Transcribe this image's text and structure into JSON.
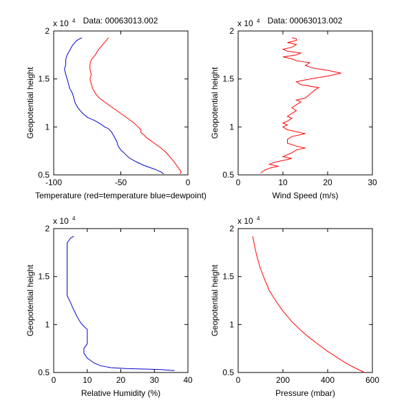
{
  "figure": {
    "background": "#ffffff"
  },
  "chart_data": [
    {
      "type": "line",
      "title": "Data: 00063013.002",
      "xlabel": "Temperature (red=temperature blue=dewpoint)",
      "ylabel": "Geopotential height",
      "xlim": [
        -100,
        0
      ],
      "ylim": [
        5000,
        20000
      ],
      "xticks": [
        -100,
        -50,
        0
      ],
      "xtick_labels": [
        "-100",
        "-50",
        "0"
      ],
      "yticks": [
        5000,
        10000,
        15000,
        20000
      ],
      "ytick_labels": [
        "0.5",
        "1",
        "1.5",
        "2"
      ],
      "y_multiplier": {
        "base": "x 10",
        "exponent": "4"
      },
      "grid": false,
      "series": [
        {
          "color": "#ff0000",
          "points": [
            [
              -6,
              5100
            ],
            [
              -5,
              5300
            ],
            [
              -7,
              5700
            ],
            [
              -10,
              6300
            ],
            [
              -13,
              6800
            ],
            [
              -16,
              7300
            ],
            [
              -20,
              7800
            ],
            [
              -25,
              8300
            ],
            [
              -28,
              8600
            ],
            [
              -31,
              8900
            ],
            [
              -33,
              9200
            ],
            [
              -35,
              9400
            ],
            [
              -35,
              9700
            ],
            [
              -37,
              10000
            ],
            [
              -41,
              10500
            ],
            [
              -46,
              11000
            ],
            [
              -51,
              11500
            ],
            [
              -56,
              12000
            ],
            [
              -61,
              12500
            ],
            [
              -66,
              13000
            ],
            [
              -69,
              13500
            ],
            [
              -71,
              14000
            ],
            [
              -72,
              14500
            ],
            [
              -73,
              15000
            ],
            [
              -72,
              15500
            ],
            [
              -73,
              16000
            ],
            [
              -73,
              16500
            ],
            [
              -72,
              17000
            ],
            [
              -69,
              17500
            ],
            [
              -67,
              18000
            ],
            [
              -64,
              18500
            ],
            [
              -61,
              19000
            ],
            [
              -59,
              19300
            ]
          ]
        },
        {
          "color": "#0000cc",
          "points": [
            [
              -18,
              5100
            ],
            [
              -20,
              5300
            ],
            [
              -25,
              5600
            ],
            [
              -33,
              6000
            ],
            [
              -39,
              6400
            ],
            [
              -44,
              6800
            ],
            [
              -47,
              7200
            ],
            [
              -50,
              7600
            ],
            [
              -52,
              8000
            ],
            [
              -53,
              8500
            ],
            [
              -55,
              9000
            ],
            [
              -57,
              9500
            ],
            [
              -59,
              9800
            ],
            [
              -62,
              10000
            ],
            [
              -65,
              10300
            ],
            [
              -70,
              10700
            ],
            [
              -75,
              11000
            ],
            [
              -79,
              11500
            ],
            [
              -82,
              12000
            ],
            [
              -84,
              12500
            ],
            [
              -85,
              13000
            ],
            [
              -86,
              13500
            ],
            [
              -88,
              14000
            ],
            [
              -89,
              14500
            ],
            [
              -90,
              15000
            ],
            [
              -91,
              15500
            ],
            [
              -92,
              16000
            ],
            [
              -91,
              16500
            ],
            [
              -91,
              17000
            ],
            [
              -90,
              17500
            ],
            [
              -88,
              18000
            ],
            [
              -86,
              18500
            ],
            [
              -83,
              19000
            ],
            [
              -79,
              19300
            ]
          ]
        }
      ]
    },
    {
      "type": "line",
      "title": "Data: 00063013.002",
      "xlabel": "Wind Speed (m/s)",
      "ylabel": "Geopotential height",
      "xlim": [
        0,
        30
      ],
      "ylim": [
        5000,
        20000
      ],
      "xticks": [
        0,
        10,
        20,
        30
      ],
      "xtick_labels": [
        "0",
        "10",
        "20",
        "30"
      ],
      "yticks": [
        5000,
        10000,
        15000,
        20000
      ],
      "ytick_labels": [
        "0.5",
        "1",
        "1.5",
        "2"
      ],
      "y_multiplier": {
        "base": "x 10",
        "exponent": "4"
      },
      "grid": false,
      "series": [
        {
          "color": "#ff0000",
          "points": [
            [
              5,
              5200
            ],
            [
              6,
              5500
            ],
            [
              7,
              5700
            ],
            [
              9,
              5900
            ],
            [
              7,
              6100
            ],
            [
              8,
              6300
            ],
            [
              10,
              6500
            ],
            [
              12,
              6700
            ],
            [
              10,
              6900
            ],
            [
              11,
              7100
            ],
            [
              12,
              7300
            ],
            [
              13,
              7600
            ],
            [
              15,
              7800
            ],
            [
              13,
              8000
            ],
            [
              11,
              8300
            ],
            [
              11,
              8700
            ],
            [
              12,
              9000
            ],
            [
              15,
              9300
            ],
            [
              13,
              9500
            ],
            [
              11,
              9700
            ],
            [
              10,
              10000
            ],
            [
              11,
              10200
            ],
            [
              10,
              10400
            ],
            [
              11,
              10600
            ],
            [
              12,
              10900
            ],
            [
              11,
              11100
            ],
            [
              12,
              11400
            ],
            [
              13,
              11700
            ],
            [
              12,
              12000
            ],
            [
              13,
              12300
            ],
            [
              14,
              12600
            ],
            [
              13,
              12800
            ],
            [
              15,
              13000
            ],
            [
              16,
              13400
            ],
            [
              17,
              13800
            ],
            [
              18,
              14100
            ],
            [
              14,
              14400
            ],
            [
              13,
              14700
            ],
            [
              16,
              15000
            ],
            [
              20,
              15300
            ],
            [
              23,
              15600
            ],
            [
              20,
              15900
            ],
            [
              17,
              16100
            ],
            [
              15,
              16400
            ],
            [
              16,
              16700
            ],
            [
              13,
              16900
            ],
            [
              12,
              17100
            ],
            [
              10,
              17300
            ],
            [
              13,
              17500
            ],
            [
              14,
              17700
            ],
            [
              11,
              17900
            ],
            [
              10,
              18100
            ],
            [
              12,
              18300
            ],
            [
              13,
              18600
            ],
            [
              11,
              18800
            ],
            [
              13,
              19000
            ],
            [
              13,
              19200
            ],
            [
              12,
              19300
            ]
          ]
        }
      ]
    },
    {
      "type": "line",
      "title": "",
      "xlabel": "Relative Humidity (%)",
      "ylabel": "Geopotential height",
      "xlim": [
        0,
        40
      ],
      "ylim": [
        5000,
        20000
      ],
      "xticks": [
        0,
        10,
        20,
        30,
        40
      ],
      "xtick_labels": [
        "0",
        "10",
        "20",
        "30",
        "40"
      ],
      "yticks": [
        5000,
        10000,
        15000,
        20000
      ],
      "ytick_labels": [
        "0.5",
        "1",
        "1.5",
        "2"
      ],
      "y_multiplier": {
        "base": "x 10",
        "exponent": "4"
      },
      "grid": false,
      "series": [
        {
          "color": "#0000cc",
          "points": [
            [
              36,
              5200
            ],
            [
              32,
              5300
            ],
            [
              28,
              5350
            ],
            [
              22,
              5400
            ],
            [
              17,
              5500
            ],
            [
              14,
              5700
            ],
            [
              12,
              6000
            ],
            [
              10,
              6500
            ],
            [
              9,
              7000
            ],
            [
              9,
              7500
            ],
            [
              10,
              8000
            ],
            [
              10,
              8500
            ],
            [
              10,
              9000
            ],
            [
              10,
              9500
            ],
            [
              9,
              9800
            ],
            [
              8,
              10200
            ],
            [
              7,
              10800
            ],
            [
              6,
              11500
            ],
            [
              5,
              12300
            ],
            [
              4,
              13000
            ],
            [
              4,
              14000
            ],
            [
              4,
              15000
            ],
            [
              4,
              16000
            ],
            [
              4,
              17000
            ],
            [
              4,
              18000
            ],
            [
              4,
              18500
            ],
            [
              5,
              19000
            ],
            [
              6,
              19200
            ]
          ]
        }
      ]
    },
    {
      "type": "line",
      "title": "",
      "xlabel": "Pressure (mbar)",
      "ylabel": "Geopotential height",
      "xlim": [
        0,
        600
      ],
      "ylim": [
        5000,
        20000
      ],
      "xticks": [
        0,
        200,
        400,
        600
      ],
      "xtick_labels": [
        "0",
        "200",
        "400",
        "600"
      ],
      "yticks": [
        5000,
        10000,
        15000,
        20000
      ],
      "ytick_labels": [
        "0.5",
        "1",
        "1.5",
        "2"
      ],
      "y_multiplier": {
        "base": "x 10",
        "exponent": "4"
      },
      "grid": false,
      "series": [
        {
          "color": "#ff0000",
          "points": [
            [
              565,
              5000
            ],
            [
              520,
              5500
            ],
            [
              480,
              6000
            ],
            [
              440,
              6600
            ],
            [
              400,
              7200
            ],
            [
              360,
              7900
            ],
            [
              320,
              8600
            ],
            [
              280,
              9400
            ],
            [
              240,
              10300
            ],
            [
              200,
              11400
            ],
            [
              170,
              12400
            ],
            [
              140,
              13500
            ],
            [
              120,
              14600
            ],
            [
              100,
              15800
            ],
            [
              85,
              17000
            ],
            [
              75,
              18000
            ],
            [
              65,
              19200
            ]
          ]
        }
      ]
    }
  ]
}
